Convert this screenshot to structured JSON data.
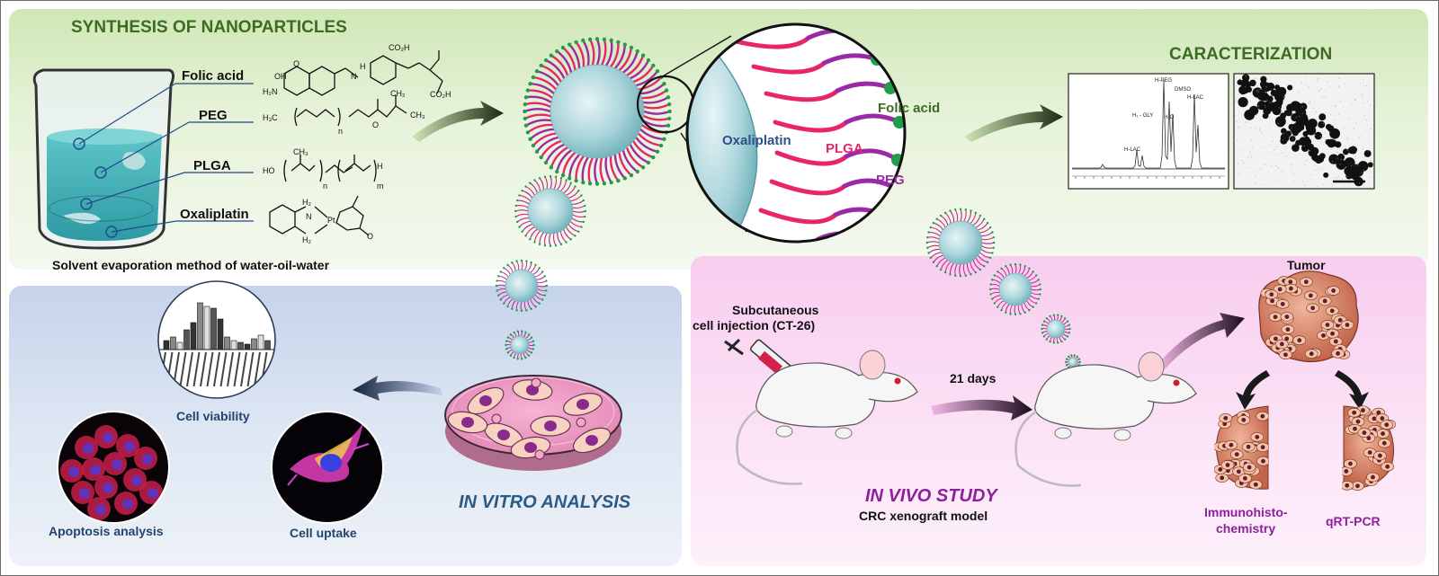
{
  "synthesis": {
    "title": "SYNTHESIS OF NANOPARTICLES",
    "reagents": [
      "Folic acid",
      "PEG",
      "PLGA",
      "Oxaliplatin"
    ],
    "method_caption": "Solvent evaporation method of water-oil-water"
  },
  "chemistry": {
    "folic_acid": {
      "co2h_a": "CO₂H",
      "co2h_b": "CO₂H",
      "o": "O",
      "h": "H",
      "n": "N",
      "nh2": "H₂N",
      "oh": "OH"
    },
    "peg": {
      "h3c": "H₃C",
      "n": "n",
      "ch2": "CH₂",
      "ch3": "CH₃",
      "o": "O"
    },
    "plga": {
      "ho": "HO",
      "ch3": "CH₃",
      "n": "n",
      "m": "m",
      "h": "H"
    },
    "oxaliplatin": {
      "h2a": "H₂",
      "h2b": "H₂",
      "n": "N",
      "pt": "Pt",
      "o": "O"
    }
  },
  "magnified": {
    "core_label": "Oxaliplatin",
    "plga_label": "PLGA",
    "peg_label": "PEG",
    "ligand_label": "Folic acid"
  },
  "characterization": {
    "title": "CARACTERIZATION",
    "nmr_peaks": [
      "H-PEG",
      "DMSO",
      "H₂O",
      "H-LAC",
      "H₁ - GLY",
      "H-LAC"
    ]
  },
  "invitro": {
    "title": "IN VITRO ANALYSIS",
    "cell_viability": "Cell viability",
    "apoptosis": "Apoptosis analysis",
    "uptake": "Cell uptake"
  },
  "invivo": {
    "title": "IN VIVO STUDY",
    "model": "CRC xenograft model",
    "injection_line1": "Subcutaneous",
    "injection_line2": "cell injection (CT-26)",
    "days": "21 days",
    "tumor": "Tumor",
    "ihc_line1": "Immunohisto-",
    "ihc_line2": "chemistry",
    "qrt": "qRT-PCR"
  },
  "colors": {
    "green_title": "#3d6b24",
    "blue_title": "#2a5a86",
    "purple_title": "#8e1f9c",
    "plga": "#e8256a",
    "peg": "#9b2aa6",
    "folate": "#1f9e4a",
    "core": "#7cbcc4"
  }
}
